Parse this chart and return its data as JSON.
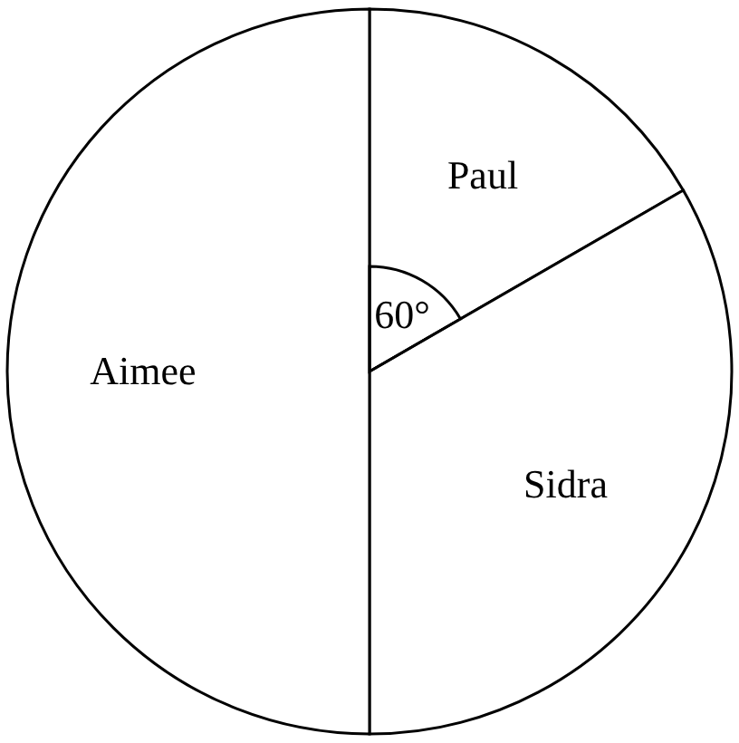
{
  "chart_data": {
    "type": "pie",
    "categories": [
      "Paul",
      "Sidra",
      "Aimee"
    ],
    "values": [
      16.67,
      33.33,
      50
    ],
    "colors": [
      "#ffffff",
      "#ffffff",
      "#ffffff"
    ],
    "annotations": [
      "60°"
    ]
  }
}
